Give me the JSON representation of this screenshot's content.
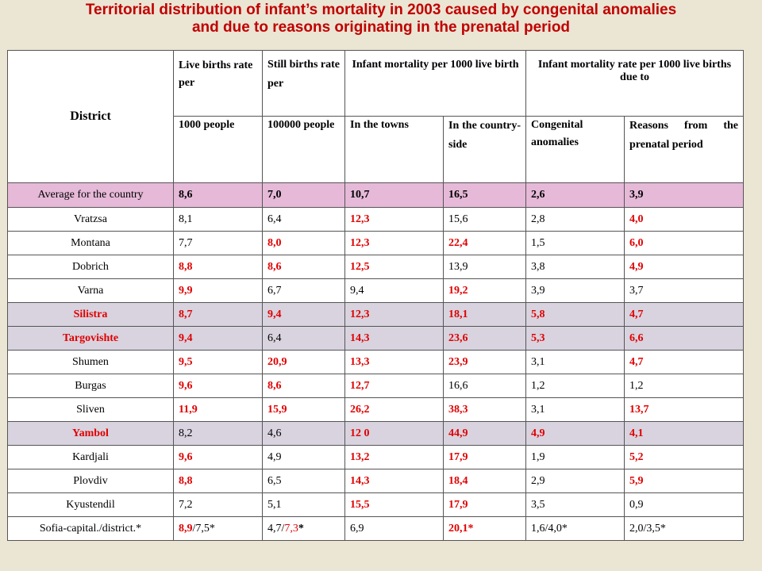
{
  "title": {
    "line1": "Territorial distribution of infant’s mortality in 2003 caused by congenital anomalies",
    "line2": "and due to reasons originating in the prenatal period"
  },
  "header": {
    "district": "District",
    "live_births_a": "Live births rate per",
    "live_births_b": "1000 people",
    "still_births_a": "Still births rate per",
    "still_births_b": "100000 people",
    "infant_mortality": "Infant mortality per 1000 live birth",
    "infant_mortality_rate": "Infant mortality rate per 1000 live births due to",
    "towns": "In the towns",
    "countryside": "In the country-side",
    "congenital": "Congenital anomalies",
    "prenatal": "Reasons from the prenatal period"
  },
  "colors": {
    "title": "#c00000",
    "red_value": "#e00000",
    "pink_row": "#e6b9d8",
    "gray_row": "#d8d3df",
    "background": "#ebe5d4"
  },
  "rows": [
    {
      "district": "Average for the country",
      "hl": "pink",
      "live": "8,6",
      "still": "7,0",
      "towns": "10,7",
      "country": "16,5",
      "congenital": "2,6",
      "prenatal": "3,9"
    },
    {
      "district": "Vratzsa",
      "live": "8,1",
      "still": "6,4",
      "towns": "12,3",
      "country": "15,6",
      "congenital": "2,8",
      "prenatal": "4,0"
    },
    {
      "district": "Montana",
      "live": "7,7",
      "still": "8,0",
      "towns": "12,3",
      "country": "22,4",
      "congenital": "1,5",
      "prenatal": "6,0"
    },
    {
      "district": "Dobrich",
      "live": "8,8",
      "still": "8,6",
      "towns": "12,5",
      "country": "13,9",
      "congenital": "3,8",
      "prenatal": "4,9"
    },
    {
      "district": "Varna",
      "live": "9,9",
      "still": "6,7",
      "towns": "9,4",
      "country": "19,2",
      "congenital": "3,9",
      "prenatal": "3,7"
    },
    {
      "district": "Silistra",
      "hl": "gray",
      "live": "8,7",
      "still": "9,4",
      "towns": "12,3",
      "country": "18,1",
      "congenital": "5,8",
      "prenatal": "4,7"
    },
    {
      "district": "Targovishte",
      "hl": "gray",
      "live": "9,4",
      "still": "6,4",
      "towns": "14,3",
      "country": "23,6",
      "congenital": "5,3",
      "prenatal": "6,6"
    },
    {
      "district": "Shumen",
      "live": "9,5",
      "still": "20,9",
      "towns": "13,3",
      "country": "23,9",
      "congenital": "3,1",
      "prenatal": "4,7"
    },
    {
      "district": "Burgas",
      "live": "9,6",
      "still": "8,6",
      "towns": "12,7",
      "country": "16,6",
      "congenital": "1,2",
      "prenatal": "1,2"
    },
    {
      "district": "Sliven",
      "live": "11,9",
      "still": "15,9",
      "towns": "26,2",
      "country": "38,3",
      "congenital": "3,1",
      "prenatal": "13,7"
    },
    {
      "district": "Yambol",
      "hl": "gray",
      "live": "8,2",
      "still": "4,6",
      "towns": "12 0",
      "country": "44,9",
      "congenital": "4,9",
      "prenatal": "4,1"
    },
    {
      "district": "Kardjali",
      "live": "9,6",
      "still": "4,9",
      "towns": "13,2",
      "country": "17,9",
      "congenital": "1,9",
      "prenatal": "5,2"
    },
    {
      "district": "Plovdiv",
      "live": "8,8",
      "still": "6,5",
      "towns": "14,3",
      "country": "18,4",
      "congenital": "2,9",
      "prenatal": "5,9"
    },
    {
      "district": "Kyustendil",
      "live": "7,2",
      "still": "5,1",
      "towns": "15,5",
      "country": "17,9",
      "congenital": "3,5",
      "prenatal": "0,9"
    },
    {
      "district": "Sofia-capital./district.*",
      "live_a": "8,9",
      "live_b": "/7,5*",
      "still_a": "4,7/",
      "still_b": "7,3",
      "still_c": "*",
      "towns": "6,9",
      "country": "20,1*",
      "congenital": "1,6/4,0*",
      "prenatal": "2,0/3,5*"
    }
  ]
}
